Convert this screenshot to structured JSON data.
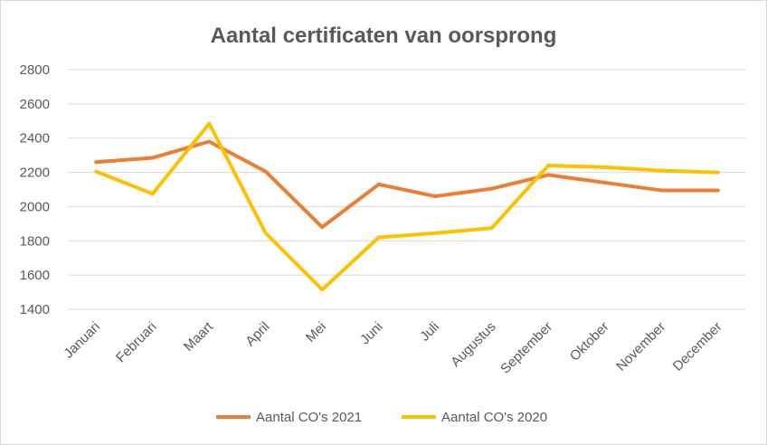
{
  "chart_data": {
    "type": "line",
    "title": "Aantal certificaten van oorsprong",
    "xlabel": "",
    "ylabel": "",
    "categories": [
      "Januari",
      "Februari",
      "Maart",
      "April",
      "Mei",
      "Juni",
      "Juli",
      "Augustus",
      "September",
      "Oktober",
      "November",
      "December"
    ],
    "ylim": [
      1400,
      2800
    ],
    "yticks": [
      1400,
      1600,
      1800,
      2000,
      2200,
      2400,
      2600,
      2800
    ],
    "grid": true,
    "legend_position": "bottom",
    "series": [
      {
        "name": "Aantal CO's 2021",
        "color": "#ED7D31",
        "values": [
          2260,
          2285,
          2380,
          2205,
          1880,
          2130,
          2060,
          2105,
          2185,
          2140,
          2095,
          2095
        ]
      },
      {
        "name": "Aantal CO's 2020",
        "color": "#FFC000",
        "values": [
          2205,
          2075,
          2485,
          1845,
          1515,
          1820,
          1845,
          1875,
          2240,
          2230,
          2210,
          2200
        ]
      }
    ]
  }
}
